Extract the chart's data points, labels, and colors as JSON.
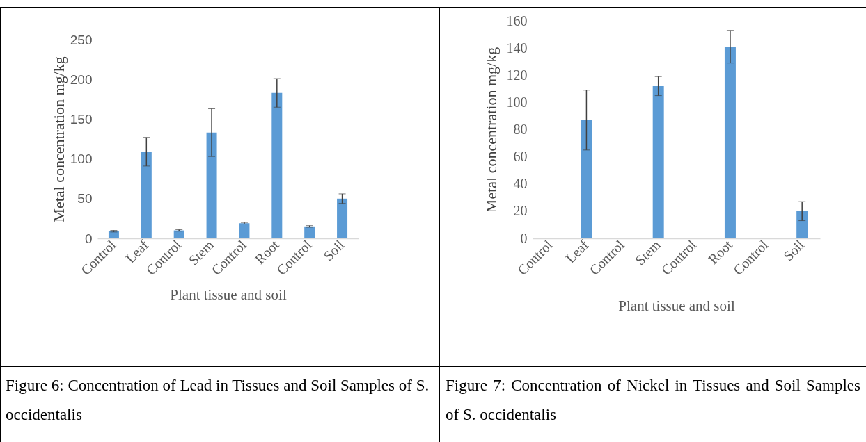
{
  "chart_data": [
    {
      "type": "bar",
      "categories": [
        "Control",
        "Leaf",
        "Control",
        "Stem",
        "Control",
        "Root",
        "Control",
        "Soil"
      ],
      "values": [
        9,
        109,
        10,
        133,
        19,
        183,
        15,
        50
      ],
      "errors": [
        1,
        18,
        1,
        30,
        1,
        18,
        1,
        6
      ],
      "color": "#5b9bd5",
      "xlabel": "Plant tissue and soil",
      "ylabel": "Metal concentration mg/kg",
      "ylim": [
        0,
        250
      ],
      "yticks": [
        0,
        50,
        100,
        150,
        200,
        250
      ],
      "grid": false,
      "annotations": [
        "Figure 6: Concentration of Lead in Tissues and Soil Samples of S. occidentalis"
      ]
    },
    {
      "type": "bar",
      "categories": [
        "Control",
        "Leaf",
        "Control",
        "Stem",
        "Control",
        "Root",
        "Control",
        "Soil"
      ],
      "values": [
        0,
        87,
        0,
        112,
        0,
        141,
        0,
        20
      ],
      "errors": [
        null,
        22,
        null,
        7,
        null,
        12,
        null,
        7
      ],
      "color": "#5b9bd5",
      "xlabel": "Plant tissue and soil",
      "ylabel": "Metal concentration mg/kg",
      "ylim": [
        0,
        160
      ],
      "yticks": [
        0,
        20,
        40,
        60,
        80,
        100,
        120,
        140,
        160
      ],
      "grid": false,
      "annotations": [
        "Figure 7: Concentration of Nickel in Tissues and Soil Samples of S. occidentalis"
      ]
    }
  ]
}
